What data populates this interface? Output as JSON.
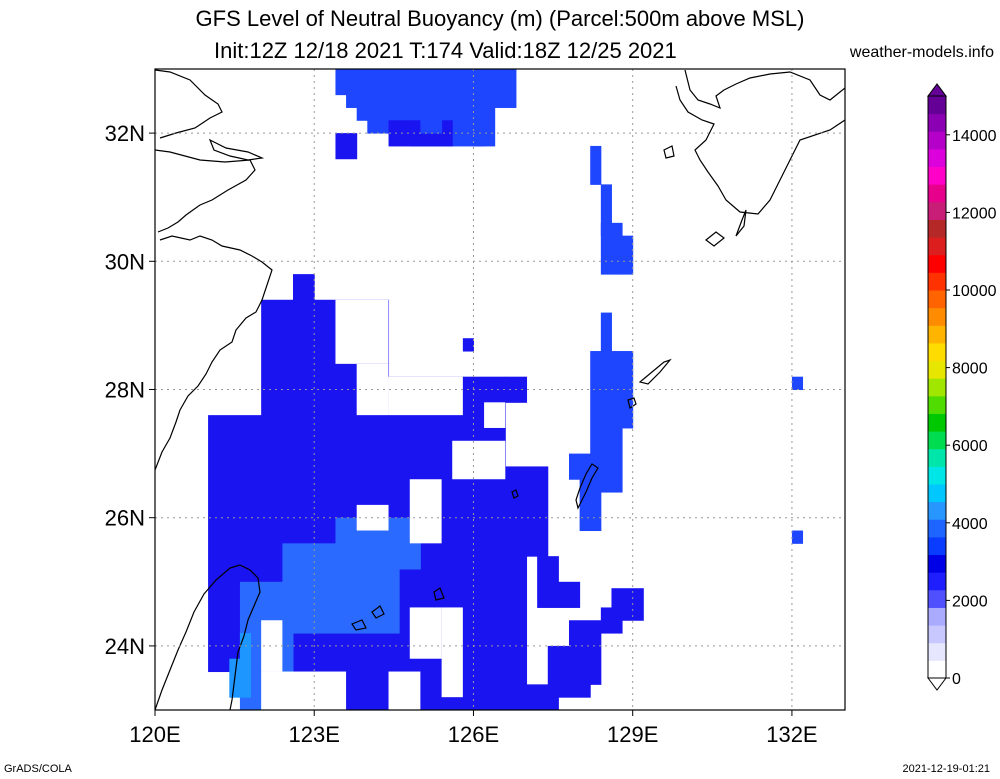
{
  "title": {
    "line1": "GFS Level of Neutral Buoyancy (m) (Parcel:500m above MSL)",
    "line2": "Init:12Z 12/18 2021 T:174 Valid:18Z 12/25 2021",
    "site": "weather-models.info"
  },
  "footer": {
    "left": "GrADS/COLA",
    "right": "2021-12-19-01:21"
  },
  "map": {
    "lon_range": [
      120,
      133
    ],
    "lat_range": [
      23,
      33
    ],
    "lon_ticks": [
      {
        "value": 120,
        "label": "120E"
      },
      {
        "value": 123,
        "label": "123E"
      },
      {
        "value": 126,
        "label": "126E"
      },
      {
        "value": 129,
        "label": "129E"
      },
      {
        "value": 132,
        "label": "132E"
      }
    ],
    "lat_ticks": [
      {
        "value": 24,
        "label": "24N"
      },
      {
        "value": 26,
        "label": "26N"
      },
      {
        "value": 28,
        "label": "28N"
      },
      {
        "value": 30,
        "label": "30N"
      },
      {
        "value": 32,
        "label": "32N"
      }
    ],
    "grid": true
  },
  "colorbar": {
    "labels": [
      "0",
      "2000",
      "4000",
      "6000",
      "8000",
      "10000",
      "12000",
      "14000"
    ],
    "colors": [
      "#ffffff",
      "#e6e6ff",
      "#c8c8ff",
      "#aaaaff",
      "#5050ff",
      "#1e1eff",
      "#0000e6",
      "#0a3cff",
      "#1e64ff",
      "#2896ff",
      "#00c8ff",
      "#00e6e6",
      "#00e6aa",
      "#00dc50",
      "#00c800",
      "#50dc00",
      "#a0e600",
      "#e6e600",
      "#ffdc00",
      "#ffb400",
      "#ff8c00",
      "#ff6400",
      "#ff3200",
      "#ff0000",
      "#dc1e1e",
      "#b42828",
      "#c81e78",
      "#e6008c",
      "#ff00c8",
      "#dc00dc",
      "#b400c8",
      "#8c00b4",
      "#640096"
    ]
  },
  "field_colors": {
    "deep": "#1a14f0",
    "mid": "#1e46ff",
    "light": "#2a6aff",
    "cyan": "#1e96ff"
  }
}
